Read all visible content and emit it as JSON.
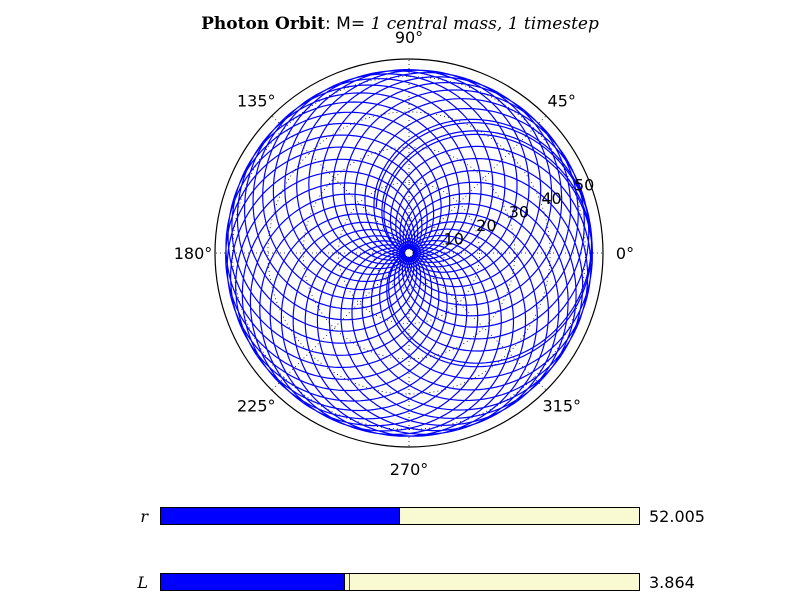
{
  "title": {
    "bold": "Photon Orbit",
    "sep": ": ",
    "mass_label": "M=",
    "rest": " 1 central mass, 1 timestep"
  },
  "colors": {
    "orbit": "#0000ff",
    "slider_fill": "#0000ff",
    "slider_bg": "#fafad2",
    "marker": "#ff0000",
    "grid": "#000000"
  },
  "chart_data": {
    "type": "line",
    "projection": "polar",
    "theta_ticks": [
      "0°",
      "45°",
      "90°",
      "135°",
      "180°",
      "225°",
      "270°",
      "315°"
    ],
    "r_ticks": [
      10,
      20,
      30,
      40,
      50
    ],
    "rlim": [
      0,
      55
    ],
    "grid": true,
    "series": [
      {
        "curve": "precessing rosette orbit",
        "r_min": 1.3,
        "r_max": 52.0,
        "petals": 36,
        "precession_deg_per_petal": 10.2,
        "start_theta_deg": 0,
        "end_theta_deg": 115
      }
    ]
  },
  "sliders": [
    {
      "label": "r",
      "value": "52.005",
      "fill_fraction": 0.497,
      "marker_fraction": null
    },
    {
      "label": "L",
      "value": "3.864",
      "fill_fraction": 0.382,
      "marker_fraction": 0.393
    }
  ]
}
